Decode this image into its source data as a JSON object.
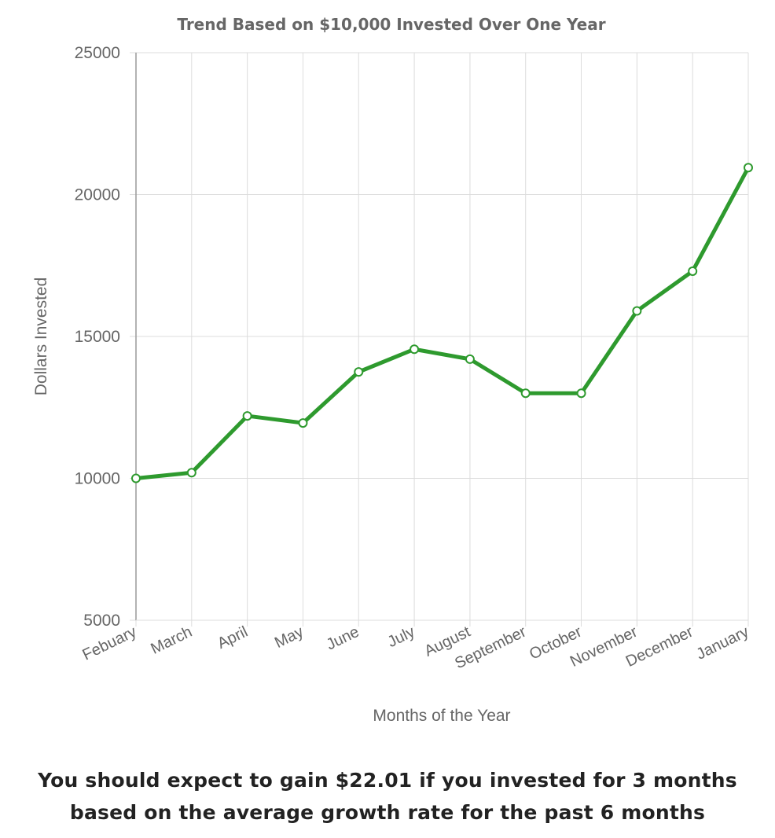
{
  "chart_data": {
    "type": "line",
    "title": "Trend Based on $10,000 Invested Over One Year",
    "xlabel": "Months of the Year",
    "ylabel": "Dollars Invested",
    "ylim": [
      5000,
      25000
    ],
    "yticks": [
      5000,
      10000,
      15000,
      20000,
      25000
    ],
    "grid": true,
    "categories": [
      "Febuary",
      "March",
      "April",
      "May",
      "June",
      "July",
      "August",
      "September",
      "October",
      "November",
      "December",
      "January"
    ],
    "series": [
      {
        "values": [
          10000,
          10200,
          12200,
          11950,
          13750,
          14550,
          14200,
          13000,
          13000,
          15900,
          17300,
          20950
        ],
        "color": "#2e9a2e"
      }
    ]
  },
  "summary": {
    "text": "You should expect to gain $22.01 if you invested for 3 months based on the average growth rate for the past 6 months"
  }
}
